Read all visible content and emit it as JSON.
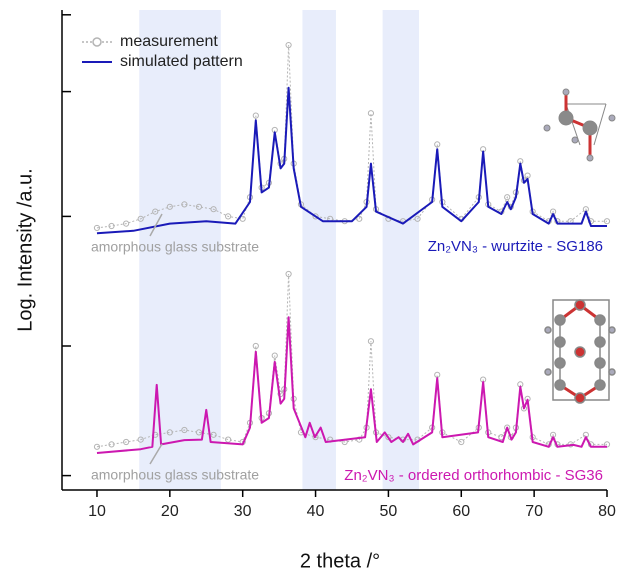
{
  "chart_data": {
    "type": "line",
    "xlabel": "2 theta /°",
    "ylabel": "Log. Intensity /a.u.",
    "xlim": [
      5.2,
      80
    ],
    "xticks": [
      10,
      20,
      30,
      40,
      50,
      60,
      70,
      80
    ],
    "ylim": [
      0,
      100
    ],
    "yticks": [
      3,
      30,
      57,
      83,
      99
    ],
    "log_scale": true,
    "grid": false,
    "legend": "upper left",
    "bands": [
      [
        15.8,
        27
      ],
      [
        38.2,
        42.8
      ],
      [
        49.2,
        54.2
      ]
    ],
    "band_color": "#e8edfb",
    "annotations": [
      "amorphous glass substrate",
      "Zn₂VN₃ - wurtzite - SG186",
      "amorphous glass substrate",
      "Zn₂VN₃ - ordered orthorhombic - SG36"
    ],
    "series": [
      {
        "name": "measurement",
        "color": "#b4b4b4",
        "style": "markers",
        "x": [
          10,
          12,
          14,
          16,
          18,
          20,
          22,
          24,
          26,
          28,
          30,
          31,
          31.8,
          32.6,
          33.6,
          34.4,
          35.2,
          35.7,
          36.3,
          37,
          38,
          40,
          42,
          44,
          46,
          47,
          47.6,
          48.3,
          50,
          52,
          54,
          56,
          56.7,
          57.4,
          60,
          62.4,
          63,
          63.7,
          65.5,
          66.3,
          66.8,
          67.5,
          68.1,
          68.6,
          69.1,
          69.8,
          72,
          72.6,
          73.2,
          75,
          77.1,
          77.8,
          80
        ],
        "values": [
          54.6,
          55,
          55.5,
          56.5,
          58,
          59,
          59.5,
          59,
          58.5,
          57,
          56.5,
          61,
          78,
          63,
          64,
          75,
          68,
          69,
          92.7,
          68,
          59.5,
          57,
          56.5,
          56,
          56.5,
          60,
          78.5,
          58.5,
          56.5,
          56,
          56.5,
          60.5,
          72,
          60,
          56.5,
          61,
          71,
          59.5,
          58,
          61,
          59,
          62,
          68.5,
          64.5,
          65.5,
          58,
          56,
          58,
          56,
          56,
          58.5,
          56,
          56
        ]
      },
      {
        "name": "simulated pattern",
        "color": "#1a1ab8",
        "style": "line",
        "x": [
          10,
          15,
          20,
          25,
          29,
          31,
          31.8,
          32.6,
          33.6,
          34.4,
          35.2,
          35.7,
          36.3,
          37,
          38,
          41,
          45,
          47,
          47.6,
          48.3,
          52,
          56,
          56.7,
          57.4,
          60,
          62.4,
          63,
          63.7,
          65.5,
          66.3,
          66.8,
          67.5,
          68.1,
          68.6,
          69.1,
          69.8,
          72,
          72.6,
          73.2,
          76.5,
          77.1,
          77.8,
          80
        ],
        "values": [
          53.5,
          54,
          55.5,
          56,
          55.5,
          60,
          77,
          62,
          63,
          74.5,
          67,
          68,
          83.8,
          67,
          59,
          56,
          56,
          59,
          68,
          58,
          55.5,
          60,
          71,
          59,
          56,
          60,
          70.5,
          59,
          57.5,
          60,
          58.5,
          61,
          68,
          64,
          64.8,
          57.5,
          55.5,
          57.5,
          55.5,
          55.5,
          58,
          55,
          55
        ]
      },
      {
        "color": "#b4b4b4",
        "style": "markers",
        "x": [
          10,
          12,
          14,
          16,
          18,
          20,
          22,
          24,
          26,
          28,
          30,
          31,
          31.8,
          32.6,
          33.6,
          34.4,
          35.2,
          35.7,
          36.3,
          37,
          38,
          40,
          42,
          44,
          46,
          47,
          47.6,
          48.3,
          50,
          52,
          54,
          56,
          56.7,
          57.4,
          60,
          62.4,
          63,
          63.7,
          65.5,
          66.3,
          66.8,
          67.5,
          68.1,
          68.6,
          69.1,
          69.8,
          72,
          72.6,
          73.2,
          75,
          77.1,
          77.8,
          80
        ],
        "values": [
          9,
          9.5,
          10,
          10.5,
          11.5,
          12,
          12.5,
          12,
          11.5,
          10.5,
          10,
          14,
          30,
          15,
          16,
          28,
          20,
          21,
          45,
          19,
          12,
          11,
          10.5,
          10,
          10.5,
          13,
          31,
          12,
          11,
          10.5,
          10.5,
          13,
          24,
          12,
          10,
          13,
          23,
          12,
          11,
          13,
          11,
          13,
          22,
          17,
          19,
          11,
          9.5,
          11.5,
          9.5,
          9.5,
          11.5,
          9.5,
          9.5
        ]
      },
      {
        "color": "#cc18b0",
        "style": "line",
        "x": [
          10,
          16,
          17.6,
          18.2,
          18.8,
          22,
          24.4,
          25,
          25.6,
          30,
          31,
          31.8,
          32.6,
          33.6,
          34.4,
          35.2,
          35.7,
          36.3,
          37,
          38.6,
          39.2,
          39.9,
          40.7,
          41.4,
          46.8,
          47.6,
          48.4,
          49.5,
          50.4,
          51.4,
          52,
          52.7,
          53.4,
          56,
          56.7,
          57.4,
          62.3,
          63,
          63.7,
          65.7,
          66.3,
          66.9,
          67.5,
          68.1,
          68.6,
          69.1,
          69.8,
          72,
          72.6,
          73.2,
          75.4,
          76.5,
          77.1,
          77.8,
          80
        ],
        "values": [
          7.7,
          8.5,
          9,
          21.9,
          9.5,
          10.4,
          10.5,
          16.7,
          10,
          9.5,
          13,
          28.8,
          14,
          15,
          26.7,
          18,
          19,
          36,
          17,
          11,
          14,
          11,
          13,
          10,
          11,
          21,
          10,
          12,
          10,
          11,
          10,
          11.7,
          9.5,
          12,
          23.3,
          11,
          12,
          22.5,
          11,
          10,
          13,
          10.5,
          12,
          21.5,
          17,
          18.8,
          10,
          9,
          11,
          9,
          9.4,
          9,
          11,
          9,
          9
        ]
      }
    ]
  }
}
